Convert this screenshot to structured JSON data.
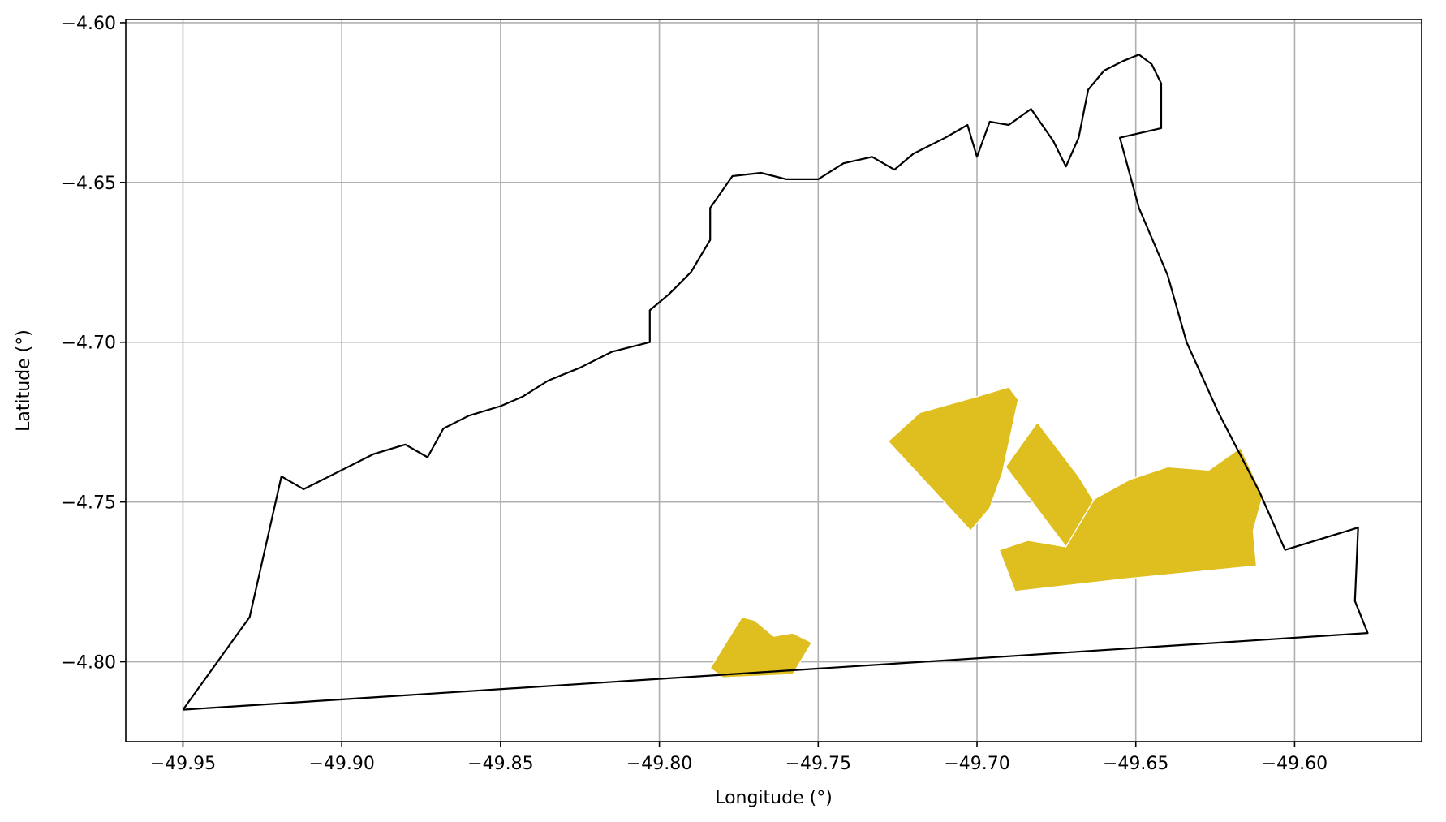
{
  "chart_data": {
    "type": "map",
    "title": "",
    "xlabel": "Longitude (°)",
    "ylabel": "Latitude (°)",
    "xlim": [
      -49.968,
      -49.56
    ],
    "ylim": [
      -4.825,
      -4.599
    ],
    "x_ticks": [
      -49.95,
      -49.9,
      -49.85,
      -49.8,
      -49.75,
      -49.7,
      -49.65,
      -49.6
    ],
    "y_ticks": [
      -4.6,
      -4.65,
      -4.7,
      -4.75,
      -4.8
    ],
    "x_tick_labels": [
      "−49.95",
      "−49.90",
      "−49.85",
      "−49.80",
      "−49.75",
      "−49.70",
      "−49.65",
      "−49.60"
    ],
    "y_tick_labels": [
      "−4.60",
      "−4.65",
      "−4.70",
      "−4.75",
      "−4.80"
    ],
    "grid": true,
    "colors": {
      "boundary": "#000000",
      "parcels": "#dfbe20",
      "grid": "#b0b0b0"
    },
    "boundary": [
      [
        -49.95,
        -4.815
      ],
      [
        -49.929,
        -4.786
      ],
      [
        -49.919,
        -4.742
      ],
      [
        -49.912,
        -4.746
      ],
      [
        -49.9,
        -4.74
      ],
      [
        -49.89,
        -4.735
      ],
      [
        -49.88,
        -4.732
      ],
      [
        -49.873,
        -4.736
      ],
      [
        -49.868,
        -4.727
      ],
      [
        -49.86,
        -4.723
      ],
      [
        -49.85,
        -4.72
      ],
      [
        -49.843,
        -4.717
      ],
      [
        -49.835,
        -4.712
      ],
      [
        -49.825,
        -4.708
      ],
      [
        -49.815,
        -4.703
      ],
      [
        -49.803,
        -4.7
      ],
      [
        -49.803,
        -4.69
      ],
      [
        -49.797,
        -4.685
      ],
      [
        -49.79,
        -4.678
      ],
      [
        -49.784,
        -4.668
      ],
      [
        -49.784,
        -4.658
      ],
      [
        -49.777,
        -4.648
      ],
      [
        -49.768,
        -4.647
      ],
      [
        -49.76,
        -4.649
      ],
      [
        -49.75,
        -4.649
      ],
      [
        -49.742,
        -4.644
      ],
      [
        -49.733,
        -4.642
      ],
      [
        -49.726,
        -4.646
      ],
      [
        -49.72,
        -4.641
      ],
      [
        -49.71,
        -4.636
      ],
      [
        -49.703,
        -4.632
      ],
      [
        -49.7,
        -4.642
      ],
      [
        -49.696,
        -4.631
      ],
      [
        -49.69,
        -4.632
      ],
      [
        -49.683,
        -4.627
      ],
      [
        -49.676,
        -4.637
      ],
      [
        -49.672,
        -4.645
      ],
      [
        -49.668,
        -4.636
      ],
      [
        -49.665,
        -4.621
      ],
      [
        -49.66,
        -4.615
      ],
      [
        -49.654,
        -4.612
      ],
      [
        -49.649,
        -4.61
      ],
      [
        -49.645,
        -4.613
      ],
      [
        -49.642,
        -4.619
      ],
      [
        -49.642,
        -4.633
      ],
      [
        -49.655,
        -4.636
      ],
      [
        -49.649,
        -4.658
      ],
      [
        -49.64,
        -4.679
      ],
      [
        -49.634,
        -4.7
      ],
      [
        -49.624,
        -4.722
      ],
      [
        -49.611,
        -4.747
      ],
      [
        -49.603,
        -4.765
      ],
      [
        -49.58,
        -4.758
      ],
      [
        -49.581,
        -4.781
      ],
      [
        -49.577,
        -4.791
      ],
      [
        -49.95,
        -4.815
      ]
    ],
    "parcels": [
      [
        [
          -49.728,
          -4.731
        ],
        [
          -49.718,
          -4.722
        ],
        [
          -49.7,
          -4.717
        ],
        [
          -49.69,
          -4.714
        ],
        [
          -49.687,
          -4.718
        ],
        [
          -49.692,
          -4.741
        ],
        [
          -49.696,
          -4.752
        ],
        [
          -49.702,
          -4.759
        ]
      ],
      [
        [
          -49.691,
          -4.739
        ],
        [
          -49.681,
          -4.725
        ],
        [
          -49.668,
          -4.742
        ],
        [
          -49.663,
          -4.75
        ],
        [
          -49.672,
          -4.764
        ]
      ],
      [
        [
          -49.672,
          -4.764
        ],
        [
          -49.663,
          -4.749
        ],
        [
          -49.652,
          -4.743
        ],
        [
          -49.64,
          -4.739
        ],
        [
          -49.627,
          -4.74
        ],
        [
          -49.617,
          -4.733
        ],
        [
          -49.61,
          -4.748
        ],
        [
          -49.613,
          -4.759
        ],
        [
          -49.612,
          -4.77
        ],
        [
          -49.653,
          -4.774
        ],
        [
          -49.688,
          -4.778
        ],
        [
          -49.693,
          -4.765
        ],
        [
          -49.684,
          -4.762
        ]
      ],
      [
        [
          -49.784,
          -4.802
        ],
        [
          -49.774,
          -4.786
        ],
        [
          -49.77,
          -4.787
        ],
        [
          -49.764,
          -4.792
        ],
        [
          -49.758,
          -4.791
        ],
        [
          -49.752,
          -4.794
        ],
        [
          -49.758,
          -4.804
        ],
        [
          -49.78,
          -4.805
        ]
      ]
    ]
  }
}
